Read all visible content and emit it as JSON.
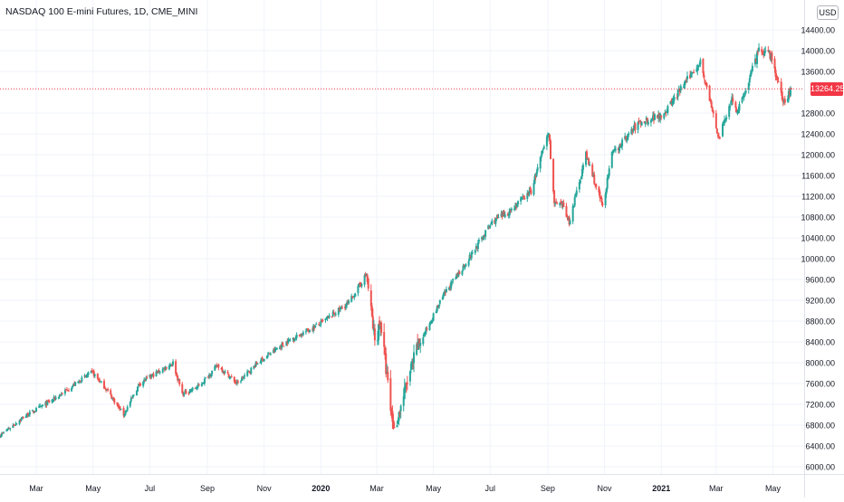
{
  "title": "NASDAQ 100 E-mini Futures, 1D, CME_MINI",
  "currency": "USD",
  "last_price_label": "13264.25",
  "colors": {
    "up": "#26a69a",
    "down": "#ef5350",
    "grid": "#f0f3fa",
    "axis_text": "#131722",
    "price_line": "#f23645"
  },
  "chart_data": {
    "type": "candlestick",
    "title": "NASDAQ 100 E-mini Futures, 1D, CME_MINI",
    "ylim": [
      5800,
      14800
    ],
    "y_ticks": [
      6000,
      6400,
      6800,
      7200,
      7600,
      8000,
      8400,
      8800,
      9200,
      9600,
      10000,
      10400,
      10800,
      11200,
      11600,
      12000,
      12400,
      12800,
      13600,
      14000,
      14400
    ],
    "y_tick_labels": [
      "6000.00",
      "6400.00",
      "6800.00",
      "7200.00",
      "7600.00",
      "8000.00",
      "8400.00",
      "8800.00",
      "9200.00",
      "9600.00",
      "10000.00",
      "10400.00",
      "10800.00",
      "11200.00",
      "11600.00",
      "12000.00",
      "12400.00",
      "12800.00",
      "13600.00",
      "14000.00",
      "14400.00"
    ],
    "x_ticks": [
      {
        "label": "Mar",
        "date": "2019-03-01"
      },
      {
        "label": "May",
        "date": "2019-05-01"
      },
      {
        "label": "Jul",
        "date": "2019-07-01"
      },
      {
        "label": "Sep",
        "date": "2019-09-01"
      },
      {
        "label": "Nov",
        "date": "2019-11-01"
      },
      {
        "label": "2020",
        "date": "2020-01-01"
      },
      {
        "label": "Mar",
        "date": "2020-03-01"
      },
      {
        "label": "May",
        "date": "2020-05-01"
      },
      {
        "label": "Jul",
        "date": "2020-07-01"
      },
      {
        "label": "Sep",
        "date": "2020-09-01"
      },
      {
        "label": "Nov",
        "date": "2020-11-01"
      },
      {
        "label": "2021",
        "date": "2021-01-01"
      },
      {
        "label": "Mar",
        "date": "2021-03-01"
      },
      {
        "label": "May",
        "date": "2021-05-01"
      }
    ],
    "last_price": 13264.25,
    "x_range": [
      "2019-01-21",
      "2021-05-21"
    ],
    "anchors": [
      [
        "2019-01-21",
        6600
      ],
      [
        "2019-02-15",
        6950
      ],
      [
        "2019-03-20",
        7300
      ],
      [
        "2019-04-30",
        7820
      ],
      [
        "2019-05-15",
        7500
      ],
      [
        "2019-06-03",
        7000
      ],
      [
        "2019-06-20",
        7600
      ],
      [
        "2019-07-26",
        8000
      ],
      [
        "2019-08-05",
        7400
      ],
      [
        "2019-08-23",
        7550
      ],
      [
        "2019-09-12",
        7950
      ],
      [
        "2019-10-03",
        7600
      ],
      [
        "2019-10-25",
        8000
      ],
      [
        "2019-11-25",
        8400
      ],
      [
        "2019-12-31",
        8750
      ],
      [
        "2020-01-31",
        9150
      ],
      [
        "2020-02-19",
        9700
      ],
      [
        "2020-02-28",
        8400
      ],
      [
        "2020-03-05",
        8800
      ],
      [
        "2020-03-16",
        7100
      ],
      [
        "2020-03-20",
        6700
      ],
      [
        "2020-04-01",
        7500
      ],
      [
        "2020-04-14",
        8300
      ],
      [
        "2020-05-12",
        9300
      ],
      [
        "2020-06-08",
        10000
      ],
      [
        "2020-07-03",
        10700
      ],
      [
        "2020-07-21",
        10900
      ],
      [
        "2020-08-14",
        11300
      ],
      [
        "2020-09-02",
        12450
      ],
      [
        "2020-09-08",
        11050
      ],
      [
        "2020-09-18",
        11000
      ],
      [
        "2020-09-24",
        10700
      ],
      [
        "2020-10-12",
        12000
      ],
      [
        "2020-10-30",
        11000
      ],
      [
        "2020-11-09",
        12000
      ],
      [
        "2020-12-07",
        12600
      ],
      [
        "2021-01-04",
        12800
      ],
      [
        "2021-02-12",
        13800
      ],
      [
        "2021-03-04",
        12300
      ],
      [
        "2021-03-18",
        13100
      ],
      [
        "2021-03-24",
        12800
      ],
      [
        "2021-04-16",
        14000
      ],
      [
        "2021-04-29",
        13900
      ],
      [
        "2021-05-12",
        13000
      ],
      [
        "2021-05-21",
        13264.25
      ]
    ]
  }
}
